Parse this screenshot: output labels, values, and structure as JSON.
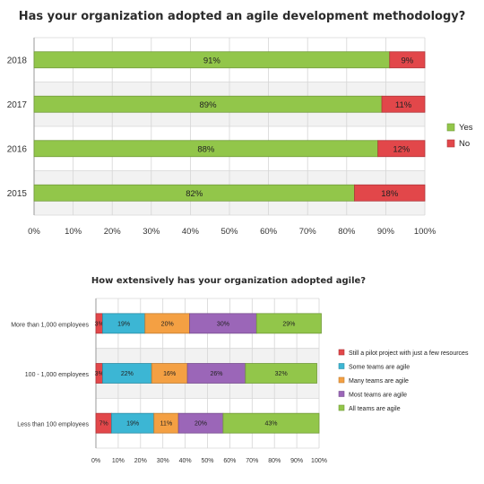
{
  "chart_data": [
    {
      "type": "bar",
      "orientation": "horizontal",
      "stacked": true,
      "title": "Has your organization adopted an agile development methodology?",
      "categories": [
        "2018",
        "2017",
        "2016",
        "2015"
      ],
      "series": [
        {
          "name": "Yes",
          "values": [
            91,
            89,
            88,
            82
          ],
          "color": "#92c64a"
        },
        {
          "name": "No",
          "values": [
            9,
            11,
            12,
            18
          ],
          "color": "#e2474a"
        }
      ],
      "xlim": [
        0,
        100
      ],
      "ticks": [
        "0%",
        "10%",
        "20%",
        "30%",
        "40%",
        "50%",
        "60%",
        "70%",
        "80%",
        "90%",
        "100%"
      ],
      "grid": true,
      "legend": "right"
    },
    {
      "type": "bar",
      "orientation": "horizontal",
      "stacked": true,
      "title": "How extensively has your organization adopted agile?",
      "categories": [
        "More than 1,000 employees",
        "100 - 1,000 employees",
        "Less than 100 employees"
      ],
      "series": [
        {
          "name": "Still a pilot project with just a few resources",
          "values": [
            3,
            3,
            7
          ],
          "color": "#e2474a"
        },
        {
          "name": "Some teams are agile",
          "values": [
            19,
            22,
            19
          ],
          "color": "#3cb6d4"
        },
        {
          "name": "Many teams are agile",
          "values": [
            20,
            16,
            11
          ],
          "color": "#f4a043"
        },
        {
          "name": "Most teams are agile",
          "values": [
            30,
            26,
            20
          ],
          "color": "#9b66b8"
        },
        {
          "name": "All teams are agile",
          "values": [
            29,
            32,
            43
          ],
          "color": "#92c64a"
        }
      ],
      "xlim": [
        0,
        100
      ],
      "ticks": [
        "0%",
        "10%",
        "20%",
        "30%",
        "40%",
        "50%",
        "60%",
        "70%",
        "80%",
        "90%",
        "100%"
      ],
      "grid": true,
      "legend": "right"
    }
  ]
}
